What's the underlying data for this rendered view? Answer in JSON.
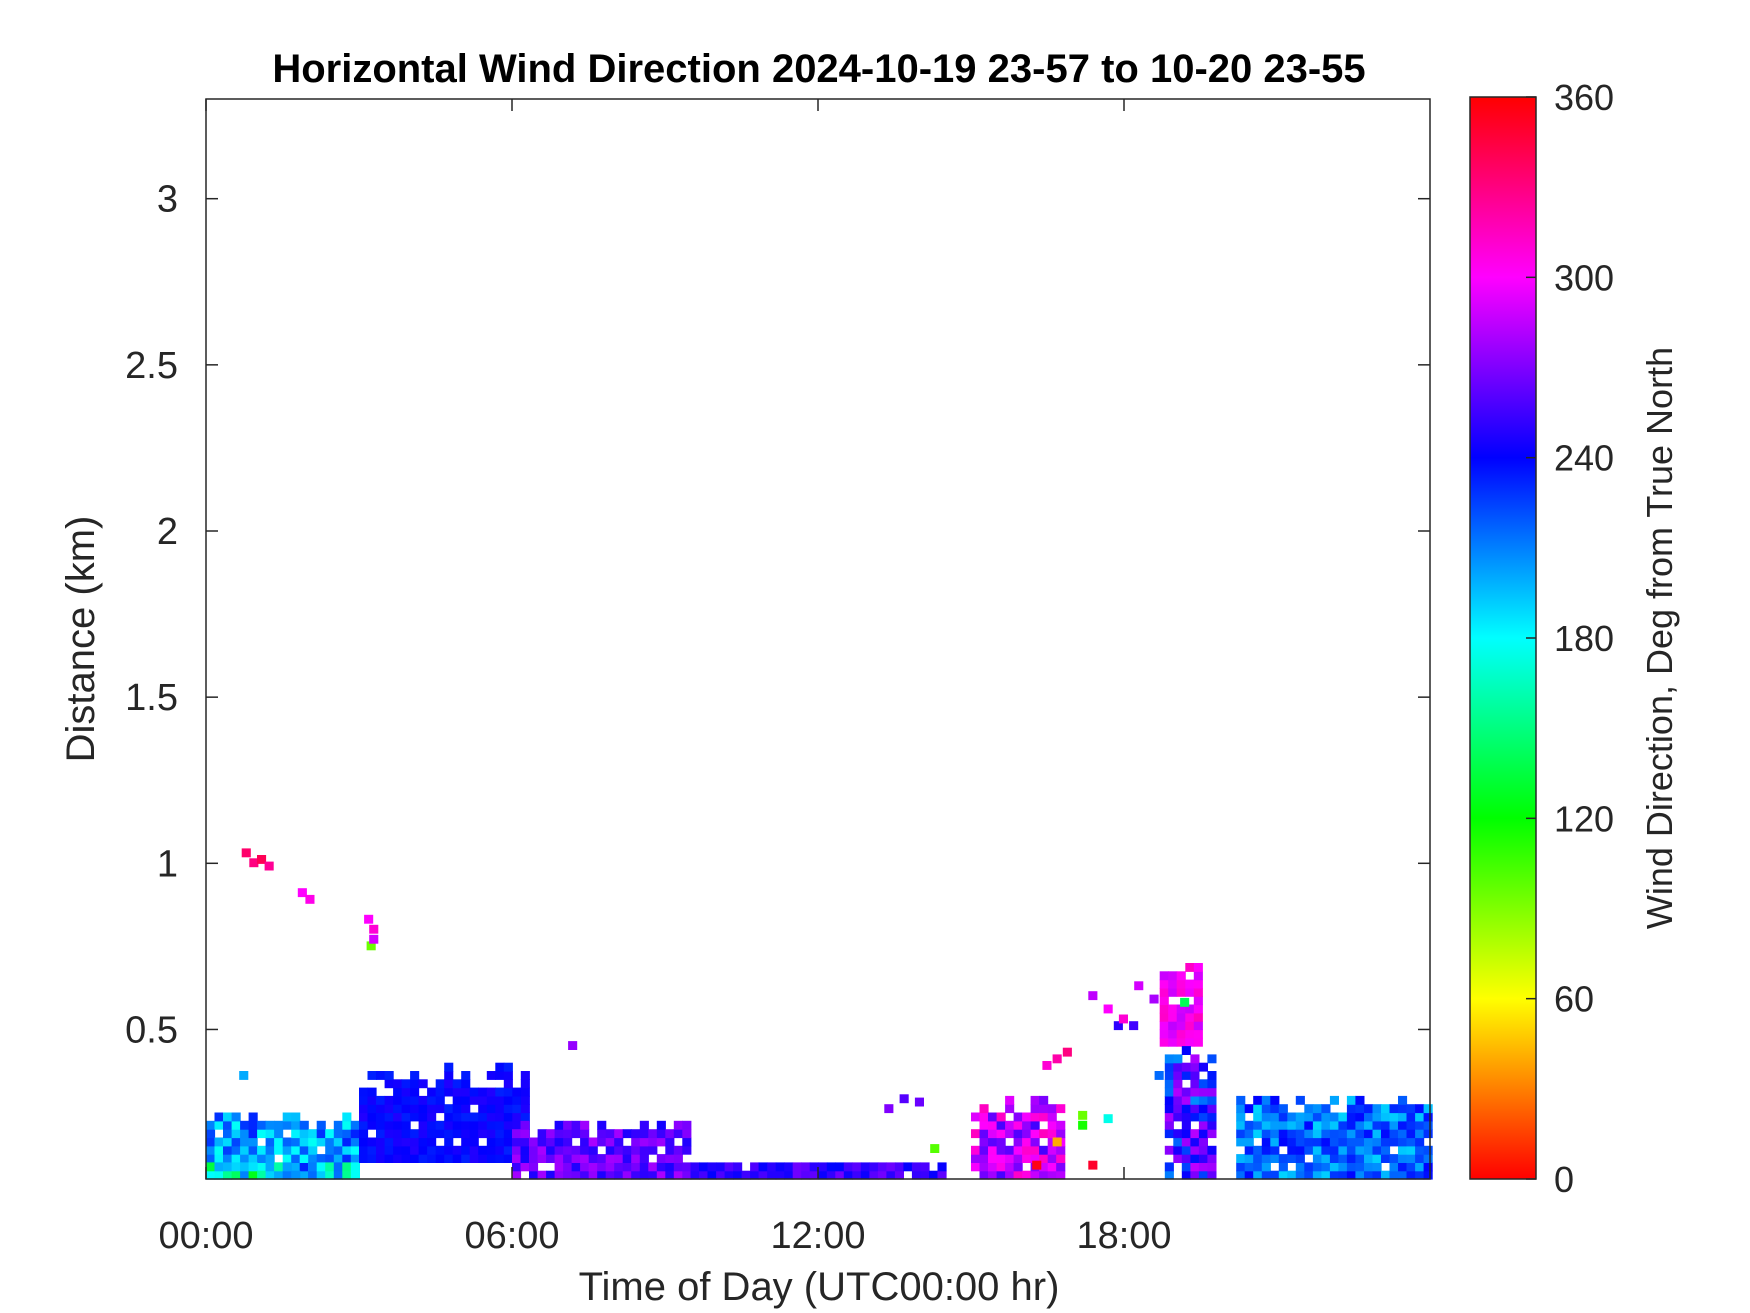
{
  "chart_data": {
    "type": "heatmap",
    "title": "Horizontal Wind Direction 2024-10-19 23-57 to 10-20 23-55",
    "xlabel": "Time of Day (UTC00:00 hr)",
    "ylabel": "Distance (km)",
    "colorbar_label": "Wind Direction, Deg from True North",
    "xlim": [
      0,
      24
    ],
    "ylim": [
      0.05,
      3.3
    ],
    "clim": [
      0,
      360
    ],
    "colormap": "hsv",
    "x_ticks": [
      {
        "value": 0,
        "label": "00:00"
      },
      {
        "value": 6,
        "label": "06:00"
      },
      {
        "value": 12,
        "label": "12:00"
      },
      {
        "value": 18,
        "label": "18:00"
      }
    ],
    "y_ticks": [
      {
        "value": 0.5,
        "label": "0.5"
      },
      {
        "value": 1,
        "label": "1"
      },
      {
        "value": 1.5,
        "label": "1.5"
      },
      {
        "value": 2,
        "label": "2"
      },
      {
        "value": 2.5,
        "label": "2.5"
      },
      {
        "value": 3,
        "label": "3"
      }
    ],
    "colorbar_ticks": [
      {
        "value": 0,
        "label": "0"
      },
      {
        "value": 60,
        "label": "60"
      },
      {
        "value": 120,
        "label": "120"
      },
      {
        "value": 180,
        "label": "180"
      },
      {
        "value": 240,
        "label": "240"
      },
      {
        "value": 300,
        "label": "300"
      },
      {
        "value": 360,
        "label": "360"
      }
    ],
    "colorbar_stops": [
      "#ff0000",
      "#ffff00",
      "#00ff00",
      "#00ffff",
      "#0000ff",
      "#ff00ff",
      "#ff0000"
    ],
    "cell_size": {
      "dx_hours": 0.167,
      "dy_km": 0.025
    },
    "regions": [
      {
        "t0": 0.0,
        "t1": 3.0,
        "z0": 0.05,
        "z1": 0.25,
        "dir": 205,
        "spread": 28
      },
      {
        "t0": 0.0,
        "t1": 3.0,
        "z0": 0.05,
        "z1": 0.1,
        "dir": 170,
        "spread": 45
      },
      {
        "t0": 3.0,
        "t1": 6.3,
        "z0": 0.1,
        "z1": 0.38,
        "dir": 240,
        "spread": 8
      },
      {
        "t0": 6.0,
        "t1": 9.5,
        "z0": 0.05,
        "z1": 0.22,
        "dir": 262,
        "spread": 18
      },
      {
        "t0": 9.5,
        "t1": 14.5,
        "z0": 0.05,
        "z1": 0.1,
        "dir": 252,
        "spread": 15
      },
      {
        "t0": 15.0,
        "t1": 16.8,
        "z0": 0.05,
        "z1": 0.28,
        "dir": 285,
        "spread": 30
      },
      {
        "t0": 18.7,
        "t1": 19.4,
        "z0": 0.45,
        "z1": 0.7,
        "dir": 300,
        "spread": 15
      },
      {
        "t0": 18.8,
        "t1": 19.8,
        "z0": 0.05,
        "z1": 0.45,
        "dir": 245,
        "spread": 40
      },
      {
        "t0": 20.2,
        "t1": 24.0,
        "z0": 0.05,
        "z1": 0.3,
        "dir": 215,
        "spread": 25
      }
    ],
    "points": [
      {
        "t": 0.7,
        "z": 1.02,
        "dir": 335
      },
      {
        "t": 0.85,
        "z": 0.99,
        "dir": 330
      },
      {
        "t": 1.0,
        "z": 1.0,
        "dir": 340
      },
      {
        "t": 1.15,
        "z": 0.98,
        "dir": 325
      },
      {
        "t": 1.8,
        "z": 0.9,
        "dir": 300
      },
      {
        "t": 1.95,
        "z": 0.88,
        "dir": 305
      },
      {
        "t": 3.1,
        "z": 0.82,
        "dir": 300
      },
      {
        "t": 3.2,
        "z": 0.79,
        "dir": 310
      },
      {
        "t": 3.15,
        "z": 0.74,
        "dir": 95
      },
      {
        "t": 3.2,
        "z": 0.76,
        "dir": 290
      },
      {
        "t": 7.1,
        "z": 0.44,
        "dir": 275
      },
      {
        "t": 0.65,
        "z": 0.35,
        "dir": 200
      },
      {
        "t": 17.3,
        "z": 0.59,
        "dir": 285
      },
      {
        "t": 17.6,
        "z": 0.55,
        "dir": 300
      },
      {
        "t": 17.8,
        "z": 0.5,
        "dir": 250
      },
      {
        "t": 17.9,
        "z": 0.52,
        "dir": 310
      },
      {
        "t": 18.1,
        "z": 0.5,
        "dir": 255
      },
      {
        "t": 18.5,
        "z": 0.58,
        "dir": 280
      },
      {
        "t": 18.2,
        "z": 0.62,
        "dir": 290
      },
      {
        "t": 17.1,
        "z": 0.23,
        "dir": 95
      },
      {
        "t": 17.1,
        "z": 0.2,
        "dir": 115
      },
      {
        "t": 17.6,
        "z": 0.22,
        "dir": 175
      },
      {
        "t": 16.6,
        "z": 0.15,
        "dir": 40
      },
      {
        "t": 16.2,
        "z": 0.08,
        "dir": 355
      },
      {
        "t": 17.3,
        "z": 0.08,
        "dir": 350
      },
      {
        "t": 14.2,
        "z": 0.13,
        "dir": 100
      },
      {
        "t": 13.3,
        "z": 0.25,
        "dir": 270
      },
      {
        "t": 13.6,
        "z": 0.28,
        "dir": 260
      },
      {
        "t": 13.9,
        "z": 0.27,
        "dir": 265
      },
      {
        "t": 16.4,
        "z": 0.38,
        "dir": 310
      },
      {
        "t": 16.6,
        "z": 0.4,
        "dir": 320
      },
      {
        "t": 16.8,
        "z": 0.42,
        "dir": 330
      },
      {
        "t": 19.1,
        "z": 0.57,
        "dir": 140
      },
      {
        "t": 18.6,
        "z": 0.35,
        "dir": 215
      }
    ]
  }
}
